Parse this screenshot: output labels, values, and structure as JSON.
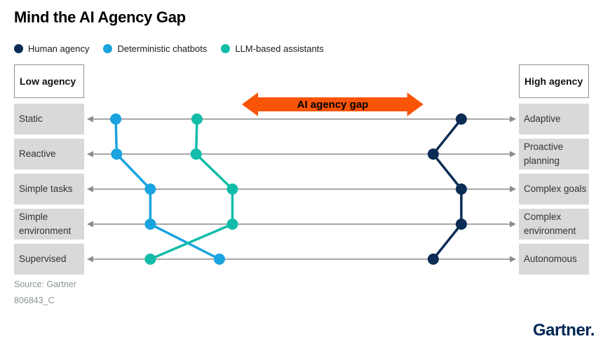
{
  "title": "Mind the AI Agency Gap",
  "legend": [
    {
      "label": "Human agency",
      "color": "#0b2d55"
    },
    {
      "label": "Deterministic chatbots",
      "color": "#1aa3de"
    },
    {
      "label": "LLM-based assistants",
      "color": "#12bca9"
    }
  ],
  "left_header": "Low agency",
  "right_header": "High agency",
  "left_labels": [
    "Static",
    "Reactive",
    "Simple tasks",
    "Simple environment",
    "Supervised"
  ],
  "right_labels": [
    "Adaptive",
    "Proactive planning",
    "Complex goals",
    "Complex environment",
    "Autonomous"
  ],
  "gap_arrow": {
    "label": "AI agency gap",
    "color": "#f95408"
  },
  "source_line1": "Source: Gartner",
  "source_line2": "806843_C",
  "brand": "Gartner.",
  "colors": {
    "axis_gray": "#8c8c8c",
    "row_box_gray": "#d9d9d9",
    "brand_navy": "#002856"
  },
  "chart_data": {
    "type": "line",
    "subtype": "paired-axes-slopegraph",
    "title": "Mind the AI Agency Gap",
    "rows": [
      {
        "low": "Static",
        "high": "Adaptive"
      },
      {
        "low": "Reactive",
        "high": "Proactive planning"
      },
      {
        "low": "Simple tasks",
        "high": "Complex goals"
      },
      {
        "low": "Simple environment",
        "high": "Complex environment"
      },
      {
        "low": "Supervised",
        "high": "Autonomous"
      }
    ],
    "axis": {
      "left_label": "Low agency",
      "right_label": "High agency",
      "range_pct": [
        0,
        100
      ],
      "grid": false
    },
    "legend_position": "top-left",
    "series": [
      {
        "name": "Human agency",
        "color": "#0b2d55",
        "positions_pct": [
          87,
          80.5,
          87,
          87,
          80.5
        ]
      },
      {
        "name": "Deterministic chatbots",
        "color": "#1aa3de",
        "positions_pct": [
          7,
          7.2,
          15,
          15,
          31
        ]
      },
      {
        "name": "LLM-based assistants",
        "color": "#12bca9",
        "positions_pct": [
          25.8,
          25.6,
          34,
          34,
          15
        ]
      }
    ],
    "annotation": {
      "label": "AI agency gap",
      "color": "#f95408",
      "span_pct": [
        36.2,
        78.2
      ],
      "position": "above first row"
    }
  }
}
